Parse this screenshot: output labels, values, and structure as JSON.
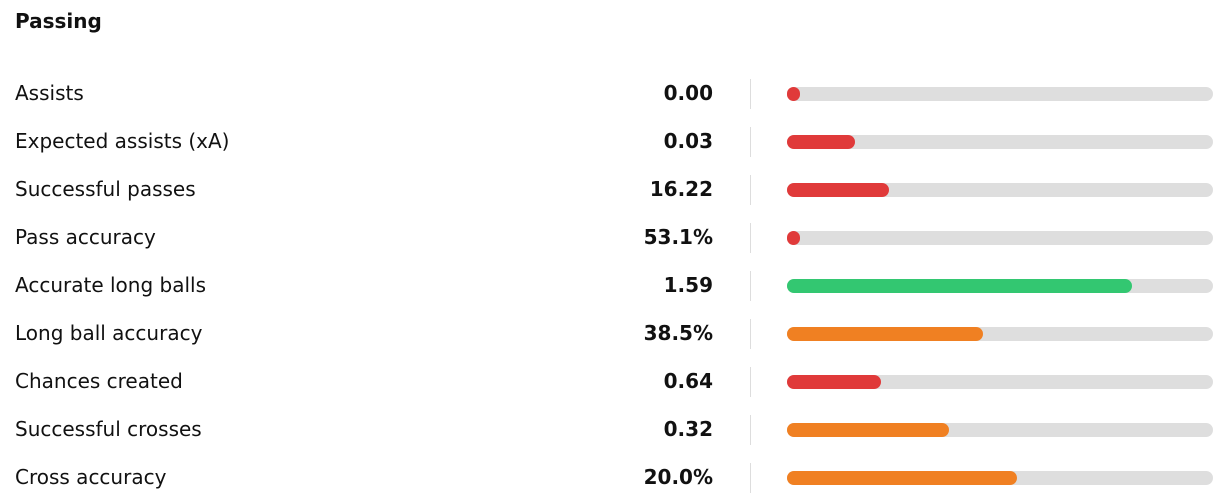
{
  "section": {
    "title": "Passing",
    "rows": [
      {
        "label": "Assists",
        "value": "0.00",
        "percentile": 3,
        "color": "#e03a3a"
      },
      {
        "label": "Expected assists (xA)",
        "value": "0.03",
        "percentile": 16,
        "color": "#e03a3a"
      },
      {
        "label": "Successful passes",
        "value": "16.22",
        "percentile": 24,
        "color": "#e03a3a"
      },
      {
        "label": "Pass accuracy",
        "value": "53.1%",
        "percentile": 3,
        "color": "#e03a3a"
      },
      {
        "label": "Accurate long balls",
        "value": "1.59",
        "percentile": 81,
        "color": "#33c771"
      },
      {
        "label": "Long ball accuracy",
        "value": "38.5%",
        "percentile": 46,
        "color": "#f08022"
      },
      {
        "label": "Chances created",
        "value": "0.64",
        "percentile": 22,
        "color": "#e03a3a"
      },
      {
        "label": "Successful crosses",
        "value": "0.32",
        "percentile": 38,
        "color": "#f08022"
      },
      {
        "label": "Cross accuracy",
        "value": "20.0%",
        "percentile": 54,
        "color": "#f08022"
      }
    ]
  }
}
